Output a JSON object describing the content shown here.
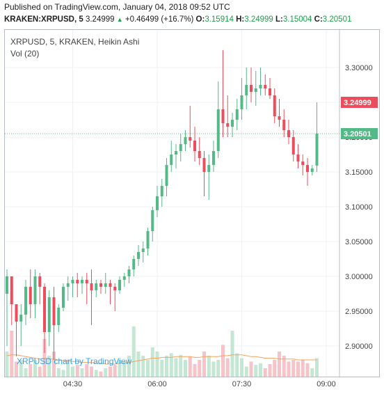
{
  "header": {
    "published": "Published on TradingView.com, January 04, 2018 09:52 UTC",
    "symbol": "KRAKEN:XRPUSD, 5",
    "price": "3.24999",
    "change": "+0.46499 (+16.7%)",
    "o_label": "O:",
    "o_value": "3.15914",
    "h_label": "H:",
    "h_value": "3.24999",
    "l_label": "L:",
    "l_value": "3.15004",
    "c_label": "C:",
    "c_value": "3.20501"
  },
  "legend": {
    "title": "XRPUSD, 5, KRAKEN, Heikin Ashi",
    "volume": "Vol (20)"
  },
  "watermark": "XRPUSD chart by TradingView",
  "colors": {
    "up": "#53b987",
    "down": "#eb4d5c",
    "vol_up": "#c3e7d2",
    "vol_down": "#f6c3c8",
    "vol_ma": "#f7a35c",
    "grid": "#eef0f3",
    "price_tag_high": "#eb4d5c",
    "price_tag_close": "#53b987"
  },
  "chart_data": {
    "type": "candlestick",
    "title": "XRPUSD, 5, KRAKEN, Heikin Ashi",
    "y_ticks": [
      "3.30000",
      "3.25000",
      "3.20000",
      "3.15000",
      "3.10000",
      "3.05000",
      "3.00000",
      "2.95000",
      "2.90000"
    ],
    "y_tick_values": [
      3.3,
      3.25,
      3.2,
      3.15,
      3.1,
      3.05,
      3.0,
      2.95,
      2.9
    ],
    "ylim": [
      2.857,
      3.352
    ],
    "x_ticks": [
      "04:30",
      "06:00",
      "07:30",
      "09:00"
    ],
    "x_tick_index": [
      14,
      32,
      50,
      68
    ],
    "price_labels": [
      {
        "text": "3.24999",
        "value": 3.24999,
        "kind": "high"
      },
      {
        "text": "3.20501",
        "value": 3.20501,
        "kind": "close"
      }
    ],
    "candles": [
      {
        "o": 2.975,
        "h": 3.01,
        "l": 2.9,
        "c": 3.0
      },
      {
        "o": 3.0,
        "h": 3.0,
        "l": 2.93,
        "c": 2.96
      },
      {
        "o": 2.96,
        "h": 2.96,
        "l": 2.885,
        "c": 2.935
      },
      {
        "o": 2.935,
        "h": 2.96,
        "l": 2.9,
        "c": 2.945
      },
      {
        "o": 2.945,
        "h": 2.995,
        "l": 2.93,
        "c": 2.985
      },
      {
        "o": 2.985,
        "h": 3.01,
        "l": 2.94,
        "c": 2.96
      },
      {
        "o": 2.96,
        "h": 3.01,
        "l": 2.94,
        "c": 3.0
      },
      {
        "o": 3.0,
        "h": 3.005,
        "l": 2.96,
        "c": 2.985
      },
      {
        "o": 2.985,
        "h": 2.99,
        "l": 2.89,
        "c": 2.92
      },
      {
        "o": 2.92,
        "h": 2.98,
        "l": 2.9,
        "c": 2.97
      },
      {
        "o": 2.97,
        "h": 2.985,
        "l": 2.88,
        "c": 2.93
      },
      {
        "o": 2.93,
        "h": 2.96,
        "l": 2.92,
        "c": 2.955
      },
      {
        "o": 2.955,
        "h": 2.99,
        "l": 2.95,
        "c": 2.985
      },
      {
        "o": 2.985,
        "h": 3.0,
        "l": 2.965,
        "c": 2.99
      },
      {
        "o": 2.99,
        "h": 3.0,
        "l": 2.97,
        "c": 2.995
      },
      {
        "o": 2.995,
        "h": 3.005,
        "l": 2.97,
        "c": 2.99
      },
      {
        "o": 2.99,
        "h": 3.0,
        "l": 2.975,
        "c": 2.995
      },
      {
        "o": 2.995,
        "h": 3.005,
        "l": 2.96,
        "c": 2.99
      },
      {
        "o": 2.99,
        "h": 3.01,
        "l": 2.93,
        "c": 2.98
      },
      {
        "o": 2.98,
        "h": 2.995,
        "l": 2.97,
        "c": 2.99
      },
      {
        "o": 2.99,
        "h": 2.995,
        "l": 2.975,
        "c": 2.985
      },
      {
        "o": 2.985,
        "h": 3.005,
        "l": 2.975,
        "c": 2.99
      },
      {
        "o": 2.99,
        "h": 2.995,
        "l": 2.96,
        "c": 2.985
      },
      {
        "o": 2.985,
        "h": 2.99,
        "l": 2.95,
        "c": 2.98
      },
      {
        "o": 2.98,
        "h": 3.0,
        "l": 2.975,
        "c": 2.995
      },
      {
        "o": 2.995,
        "h": 3.005,
        "l": 2.985,
        "c": 3.0
      },
      {
        "o": 3.0,
        "h": 3.015,
        "l": 2.99,
        "c": 3.01
      },
      {
        "o": 3.01,
        "h": 3.03,
        "l": 3.0,
        "c": 3.025
      },
      {
        "o": 3.025,
        "h": 3.045,
        "l": 3.015,
        "c": 3.035
      },
      {
        "o": 3.035,
        "h": 3.05,
        "l": 3.02,
        "c": 3.04
      },
      {
        "o": 3.04,
        "h": 3.07,
        "l": 3.03,
        "c": 3.065
      },
      {
        "o": 3.065,
        "h": 3.1,
        "l": 3.05,
        "c": 3.095
      },
      {
        "o": 3.095,
        "h": 3.13,
        "l": 3.085,
        "c": 3.115
      },
      {
        "o": 3.115,
        "h": 3.14,
        "l": 3.1,
        "c": 3.13
      },
      {
        "o": 3.13,
        "h": 3.17,
        "l": 3.115,
        "c": 3.16
      },
      {
        "o": 3.16,
        "h": 3.195,
        "l": 3.15,
        "c": 3.175
      },
      {
        "o": 3.175,
        "h": 3.19,
        "l": 3.155,
        "c": 3.18
      },
      {
        "o": 3.18,
        "h": 3.205,
        "l": 3.165,
        "c": 3.19
      },
      {
        "o": 3.19,
        "h": 3.21,
        "l": 3.18,
        "c": 3.2
      },
      {
        "o": 3.2,
        "h": 3.245,
        "l": 3.185,
        "c": 3.195
      },
      {
        "o": 3.195,
        "h": 3.215,
        "l": 3.165,
        "c": 3.18
      },
      {
        "o": 3.18,
        "h": 3.2,
        "l": 3.16,
        "c": 3.17
      },
      {
        "o": 3.17,
        "h": 3.18,
        "l": 3.115,
        "c": 3.15
      },
      {
        "o": 3.15,
        "h": 3.175,
        "l": 3.11,
        "c": 3.16
      },
      {
        "o": 3.16,
        "h": 3.195,
        "l": 3.15,
        "c": 3.18
      },
      {
        "o": 3.18,
        "h": 3.28,
        "l": 3.17,
        "c": 3.24
      },
      {
        "o": 3.24,
        "h": 3.325,
        "l": 3.2,
        "c": 3.22
      },
      {
        "o": 3.22,
        "h": 3.26,
        "l": 3.2,
        "c": 3.215
      },
      {
        "o": 3.215,
        "h": 3.235,
        "l": 3.2,
        "c": 3.225
      },
      {
        "o": 3.225,
        "h": 3.255,
        "l": 3.21,
        "c": 3.24
      },
      {
        "o": 3.24,
        "h": 3.285,
        "l": 3.225,
        "c": 3.26
      },
      {
        "o": 3.26,
        "h": 3.3,
        "l": 3.24,
        "c": 3.275
      },
      {
        "o": 3.275,
        "h": 3.3,
        "l": 3.25,
        "c": 3.265
      },
      {
        "o": 3.265,
        "h": 3.295,
        "l": 3.245,
        "c": 3.27
      },
      {
        "o": 3.27,
        "h": 3.3,
        "l": 3.26,
        "c": 3.275
      },
      {
        "o": 3.275,
        "h": 3.29,
        "l": 3.26,
        "c": 3.27
      },
      {
        "o": 3.27,
        "h": 3.285,
        "l": 3.255,
        "c": 3.26
      },
      {
        "o": 3.26,
        "h": 3.27,
        "l": 3.22,
        "c": 3.23
      },
      {
        "o": 3.23,
        "h": 3.255,
        "l": 3.215,
        "c": 3.225
      },
      {
        "o": 3.225,
        "h": 3.24,
        "l": 3.2,
        "c": 3.21
      },
      {
        "o": 3.21,
        "h": 3.225,
        "l": 3.19,
        "c": 3.2
      },
      {
        "o": 3.2,
        "h": 3.21,
        "l": 3.165,
        "c": 3.175
      },
      {
        "o": 3.175,
        "h": 3.19,
        "l": 3.155,
        "c": 3.165
      },
      {
        "o": 3.165,
        "h": 3.175,
        "l": 3.145,
        "c": 3.16
      },
      {
        "o": 3.16,
        "h": 3.17,
        "l": 3.13,
        "c": 3.15
      },
      {
        "o": 3.15,
        "h": 3.16,
        "l": 3.145,
        "c": 3.155
      },
      {
        "o": 3.15914,
        "h": 3.24999,
        "l": 3.15004,
        "c": 3.20501
      }
    ],
    "volume": [
      0.3,
      0.55,
      0.18,
      0.2,
      0.1,
      0.15,
      0.2,
      0.12,
      0.45,
      0.25,
      0.3,
      0.1,
      0.08,
      0.2,
      0.12,
      0.14,
      0.1,
      0.15,
      0.12,
      0.08,
      0.06,
      0.1,
      0.12,
      0.14,
      0.2,
      0.18,
      0.25,
      0.6,
      0.3,
      0.25,
      0.2,
      0.35,
      0.3,
      0.2,
      0.25,
      0.28,
      0.22,
      0.26,
      0.2,
      0.24,
      0.15,
      0.2,
      0.3,
      0.25,
      0.18,
      0.2,
      0.38,
      0.22,
      0.55,
      0.28,
      0.22,
      0.12,
      0.18,
      0.14,
      0.16,
      0.1,
      0.15,
      0.2,
      0.3,
      0.25,
      0.18,
      0.2,
      0.18,
      0.2,
      0.16,
      0.1,
      0.22
    ],
    "volume_ma": [
      0.25,
      0.26,
      0.26,
      0.25,
      0.24,
      0.23,
      0.22,
      0.21,
      0.22,
      0.21,
      0.21,
      0.2,
      0.19,
      0.19,
      0.18,
      0.18,
      0.17,
      0.17,
      0.17,
      0.16,
      0.16,
      0.15,
      0.15,
      0.15,
      0.16,
      0.16,
      0.17,
      0.18,
      0.19,
      0.2,
      0.21,
      0.22,
      0.22,
      0.23,
      0.23,
      0.23,
      0.24,
      0.24,
      0.24,
      0.24,
      0.23,
      0.23,
      0.24,
      0.24,
      0.24,
      0.24,
      0.25,
      0.25,
      0.26,
      0.26,
      0.26,
      0.25,
      0.24,
      0.24,
      0.23,
      0.22,
      0.22,
      0.22,
      0.21,
      0.21,
      0.21,
      0.21,
      0.2,
      0.2,
      0.2,
      0.2,
      0.2
    ]
  }
}
